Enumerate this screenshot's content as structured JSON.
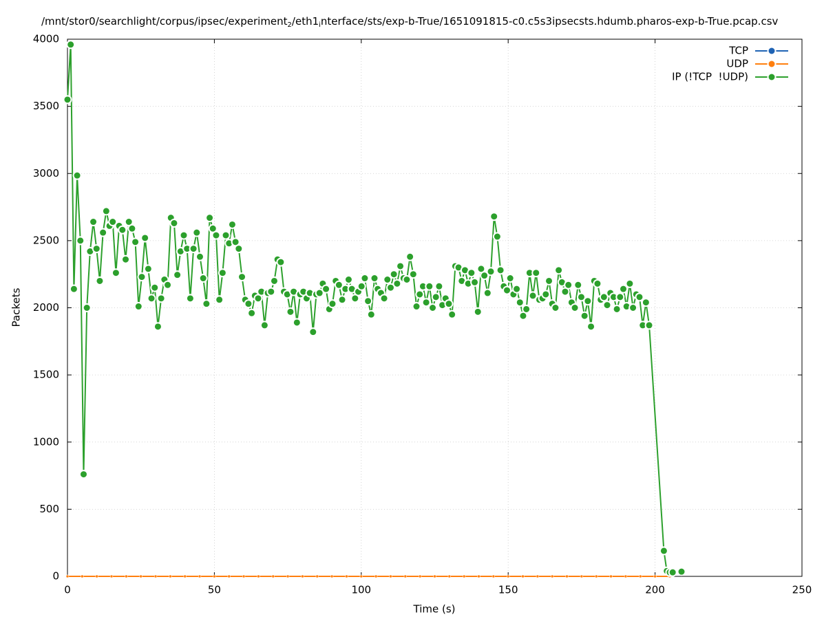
{
  "chart_data": {
    "type": "line",
    "title_parts": [
      "/mnt/stor0/searchlight/corpus/ipsec/experiment",
      "2",
      "/eth1",
      "i",
      "nterface/sts/exp-b-True/1651091815-c0.c5s3ipsecsts.hdumb.pharos-exp-b-True.pcap.csv"
    ],
    "x_label": "Time (s)",
    "y_label": "Packets",
    "xlim": [
      0,
      250
    ],
    "xticks": [
      0,
      50,
      100,
      150,
      200,
      250
    ],
    "ylim": [
      0,
      4000
    ],
    "yticks": [
      0,
      500,
      1000,
      1500,
      2000,
      2500,
      3000,
      3500,
      4000
    ],
    "grid": true,
    "legend": "top-right",
    "x": [
      0,
      1.1,
      2.2,
      3.3,
      4.4,
      5.5,
      6.6,
      7.7,
      8.8,
      9.9,
      11,
      12.1,
      13.2,
      14.3,
      15.4,
      16.5,
      17.6,
      18.7,
      19.8,
      20.9,
      22,
      23.1,
      24.2,
      25.3,
      26.4,
      27.5,
      28.6,
      29.7,
      30.8,
      31.9,
      33,
      34.1,
      35.2,
      36.3,
      37.4,
      38.5,
      39.6,
      40.7,
      41.8,
      42.9,
      44,
      45.1,
      46.2,
      47.3,
      48.4,
      49.5,
      50.6,
      51.7,
      52.8,
      53.9,
      55,
      56.1,
      57.2,
      58.3,
      59.4,
      60.5,
      61.6,
      62.7,
      63.8,
      64.9,
      66,
      67.1,
      68.2,
      69.3,
      70.4,
      71.5,
      72.6,
      73.7,
      74.8,
      75.9,
      77,
      78.1,
      79.2,
      80.3,
      81.4,
      82.5,
      83.6,
      84.7,
      85.8,
      86.9,
      88,
      89.1,
      90.2,
      91.3,
      92.4,
      93.5,
      94.6,
      95.7,
      96.8,
      97.9,
      99,
      100.1,
      101.2,
      102.3,
      103.4,
      104.5,
      105.6,
      106.7,
      107.8,
      108.9,
      110,
      111.1,
      112.2,
      113.3,
      114.4,
      115.5,
      116.6,
      117.7,
      118.8,
      119.9,
      121,
      122.1,
      123.2,
      124.3,
      125.4,
      126.5,
      127.6,
      128.7,
      129.8,
      130.9,
      132,
      133.1,
      134.2,
      135.3,
      136.4,
      137.5,
      138.6,
      139.7,
      140.8,
      141.9,
      143,
      144.1,
      145.2,
      146.3,
      147.4,
      148.5,
      149.6,
      150.7,
      151.8,
      152.9,
      154,
      155.1,
      156.2,
      157.3,
      158.4,
      159.5,
      160.6,
      161.7,
      162.8,
      163.9,
      165,
      166.1,
      167.2,
      168.3,
      169.4,
      170.5,
      171.6,
      172.7,
      173.8,
      174.9,
      176,
      177.1,
      178.2,
      179.3,
      180.4,
      181.5,
      182.6,
      183.7,
      184.8,
      185.9,
      187,
      188.1,
      189.2,
      190.3,
      191.4,
      192.5,
      193.6,
      194.7,
      195.8,
      196.9,
      198,
      203,
      204,
      205,
      206,
      209
    ],
    "series": [
      {
        "name": "TCP",
        "color": "#1f63b4",
        "x": [
          0,
          5,
          10,
          15,
          20,
          25,
          30,
          35,
          40,
          45,
          50,
          55,
          60,
          65,
          70,
          75,
          80,
          85,
          90,
          95,
          100,
          105,
          110,
          115,
          120,
          125,
          130,
          135,
          140,
          145,
          150,
          155,
          160,
          165,
          170,
          175,
          180,
          185,
          190,
          195,
          200,
          205
        ],
        "values": [
          0,
          0,
          0,
          0,
          0,
          0,
          0,
          0,
          0,
          0,
          0,
          0,
          0,
          0,
          0,
          0,
          0,
          0,
          0,
          0,
          0,
          0,
          0,
          0,
          0,
          0,
          0,
          0,
          0,
          0,
          0,
          0,
          0,
          0,
          0,
          0,
          0,
          0,
          0,
          0,
          0,
          0
        ]
      },
      {
        "name": "UDP",
        "color": "#ff7f0e",
        "x": [
          0,
          5,
          10,
          15,
          20,
          25,
          30,
          35,
          40,
          45,
          50,
          55,
          60,
          65,
          70,
          75,
          80,
          85,
          90,
          95,
          100,
          105,
          110,
          115,
          120,
          125,
          130,
          135,
          140,
          145,
          150,
          155,
          160,
          165,
          170,
          175,
          180,
          185,
          190,
          195,
          200,
          205
        ],
        "values": [
          0,
          0,
          0,
          0,
          0,
          0,
          0,
          0,
          0,
          0,
          0,
          0,
          0,
          0,
          0,
          0,
          0,
          0,
          0,
          0,
          0,
          0,
          0,
          0,
          0,
          0,
          0,
          0,
          0,
          0,
          0,
          0,
          0,
          0,
          0,
          0,
          0,
          0,
          0,
          0,
          0,
          0
        ]
      },
      {
        "name": "IP (!TCP  !UDP)",
        "color": "#2ca02c",
        "values": [
          3550,
          3960,
          2140,
          2985,
          2500,
          760,
          2000,
          2420,
          2640,
          2440,
          2200,
          2560,
          2720,
          2610,
          2640,
          2260,
          2610,
          2580,
          2360,
          2640,
          2590,
          2490,
          2010,
          2230,
          2520,
          2290,
          2070,
          2150,
          1860,
          2070,
          2210,
          2170,
          2670,
          2630,
          2245,
          2420,
          2540,
          2440,
          2070,
          2440,
          2560,
          2380,
          2220,
          2030,
          2670,
          2590,
          2540,
          2060,
          2260,
          2540,
          2480,
          2620,
          2490,
          2440,
          2230,
          2060,
          2030,
          1960,
          2090,
          2070,
          2120,
          1870,
          2110,
          2120,
          2200,
          2360,
          2340,
          2120,
          2100,
          1970,
          2120,
          1890,
          2100,
          2120,
          2070,
          2110,
          1820,
          2100,
          2110,
          2180,
          2140,
          1990,
          2030,
          2200,
          2170,
          2060,
          2140,
          2210,
          2140,
          2070,
          2120,
          2160,
          2220,
          2050,
          1950,
          2220,
          2140,
          2110,
          2070,
          2210,
          2150,
          2250,
          2180,
          2310,
          2220,
          2210,
          2380,
          2250,
          2010,
          2100,
          2160,
          2040,
          2160,
          2000,
          2080,
          2160,
          2020,
          2070,
          2030,
          1950,
          2310,
          2300,
          2200,
          2280,
          2180,
          2260,
          2190,
          1970,
          2290,
          2240,
          2110,
          2270,
          2680,
          2530,
          2280,
          2160,
          2130,
          2220,
          2100,
          2140,
          2040,
          1940,
          1990,
          2260,
          2090,
          2260,
          2060,
          2070,
          2100,
          2200,
          2030,
          2000,
          2280,
          2190,
          2120,
          2170,
          2040,
          2000,
          2170,
          2080,
          1940,
          2050,
          1860,
          2200,
          2180,
          2060,
          2080,
          2020,
          2110,
          2080,
          1990,
          2080,
          2140,
          2010,
          2180,
          2000,
          2100,
          2080,
          1870,
          2040,
          1870,
          190,
          40,
          30,
          30,
          35
        ]
      }
    ]
  }
}
